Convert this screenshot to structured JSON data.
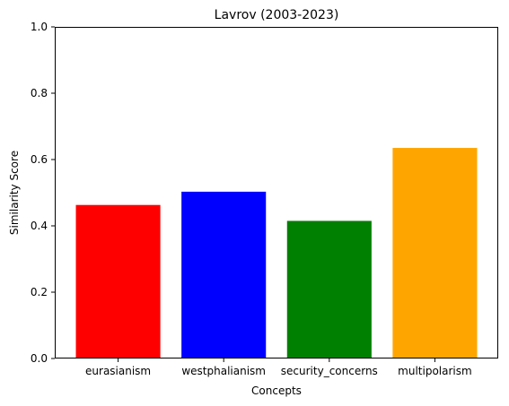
{
  "chart_data": {
    "type": "bar",
    "title": "Lavrov (2003-2023)",
    "xlabel": "Concepts",
    "ylabel": "Similarity Score",
    "categories": [
      "eurasianism",
      "westphalianism",
      "security_concerns",
      "multipolarism"
    ],
    "values": [
      0.463,
      0.503,
      0.415,
      0.635
    ],
    "colors": [
      "#ff0000",
      "#0000ff",
      "#008000",
      "#ffa500"
    ],
    "ylim": [
      0,
      1.0
    ],
    "yticks": [
      "0.0",
      "0.2",
      "0.4",
      "0.6",
      "0.8",
      "1.0"
    ],
    "grid": false,
    "legend": "none"
  }
}
